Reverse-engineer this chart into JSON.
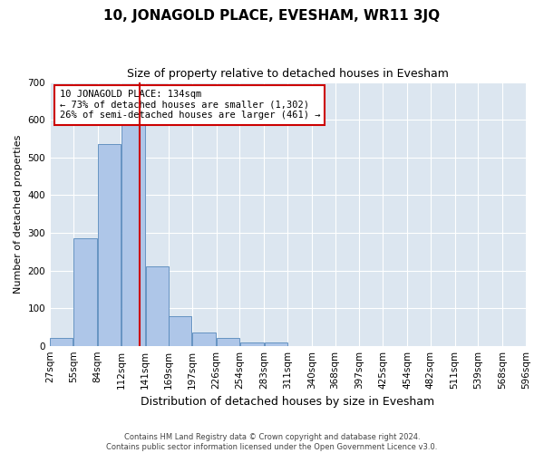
{
  "title": "10, JONAGOLD PLACE, EVESHAM, WR11 3JQ",
  "subtitle": "Size of property relative to detached houses in Evesham",
  "xlabel": "Distribution of detached houses by size in Evesham",
  "ylabel": "Number of detached properties",
  "footer_line1": "Contains HM Land Registry data © Crown copyright and database right 2024.",
  "footer_line2": "Contains public sector information licensed under the Open Government Licence v3.0.",
  "bins": [
    27,
    55,
    84,
    112,
    141,
    169,
    197,
    226,
    254,
    283,
    311,
    340,
    368,
    397,
    425,
    454,
    482,
    511,
    539,
    568,
    596
  ],
  "bar_heights": [
    20,
    285,
    535,
    585,
    210,
    78,
    35,
    22,
    10,
    10,
    0,
    0,
    0,
    0,
    0,
    0,
    0,
    0,
    0,
    0
  ],
  "bar_color": "#aec6e8",
  "bar_edge_color": "#5588bb",
  "vline_x": 134,
  "vline_color": "#cc0000",
  "annotation_box_text": "10 JONAGOLD PLACE: 134sqm\n← 73% of detached houses are smaller (1,302)\n26% of semi-detached houses are larger (461) →",
  "annotation_fontsize": 7.5,
  "annotation_box_color": "#cc0000",
  "ylim": [
    0,
    700
  ],
  "yticks": [
    0,
    100,
    200,
    300,
    400,
    500,
    600,
    700
  ],
  "background_color": "#dce6f0",
  "fig_background_color": "#ffffff",
  "title_fontsize": 11,
  "subtitle_fontsize": 9,
  "xlabel_fontsize": 9,
  "ylabel_fontsize": 8,
  "tick_fontsize": 7.5
}
